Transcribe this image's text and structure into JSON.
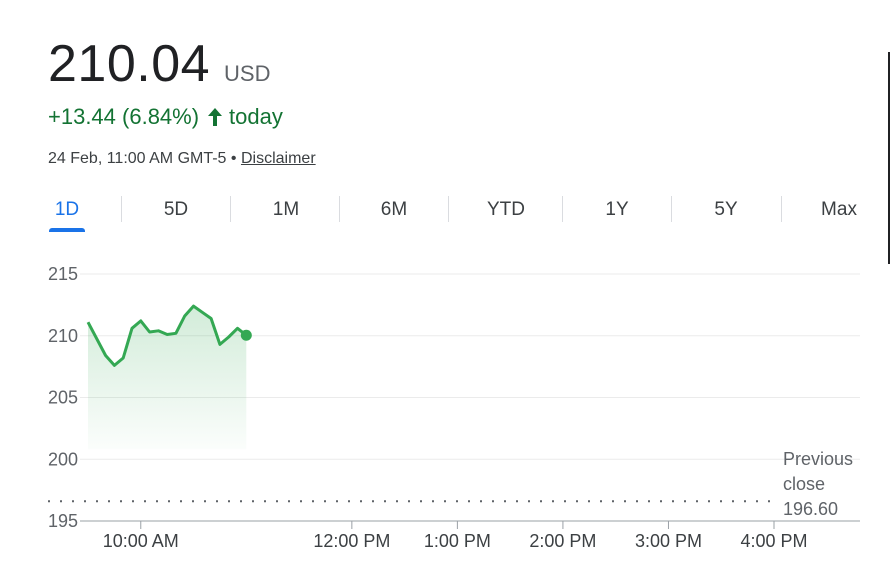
{
  "quote": {
    "price": "210.04",
    "currency": "USD",
    "change": "+13.44 (6.84%)",
    "period": "today",
    "timestamp": "24 Feb, 11:00 AM GMT-5",
    "separator": "•",
    "disclaimer": "Disclaimer",
    "up_color": "#137333"
  },
  "range_tabs": {
    "items": [
      "1D",
      "5D",
      "1M",
      "6M",
      "YTD",
      "1Y",
      "5Y",
      "Max"
    ],
    "active": "1D",
    "active_color": "#1a73e8"
  },
  "chart_data": {
    "type": "area",
    "y_ticks": [
      "215",
      "210",
      "205",
      "200",
      "195"
    ],
    "ylim": [
      195,
      215
    ],
    "x_ticks": [
      "10:00 AM",
      "12:00 PM",
      "1:00 PM",
      "2:00 PM",
      "3:00 PM",
      "4:00 PM"
    ],
    "x_range": [
      "9:30 AM",
      "4:00 PM"
    ],
    "series": [
      {
        "color": "#34a853",
        "points": [
          {
            "t": "9:30 AM",
            "v": 211.1
          },
          {
            "t": "9:40 AM",
            "v": 208.4
          },
          {
            "t": "9:45 AM",
            "v": 207.6
          },
          {
            "t": "9:50 AM",
            "v": 208.2
          },
          {
            "t": "9:55 AM",
            "v": 210.6
          },
          {
            "t": "10:00 AM",
            "v": 211.2
          },
          {
            "t": "10:05 AM",
            "v": 210.3
          },
          {
            "t": "10:10 AM",
            "v": 210.4
          },
          {
            "t": "10:15 AM",
            "v": 210.1
          },
          {
            "t": "10:20 AM",
            "v": 210.2
          },
          {
            "t": "10:25 AM",
            "v": 211.6
          },
          {
            "t": "10:30 AM",
            "v": 212.4
          },
          {
            "t": "10:35 AM",
            "v": 211.9
          },
          {
            "t": "10:40 AM",
            "v": 211.4
          },
          {
            "t": "10:45 AM",
            "v": 209.3
          },
          {
            "t": "10:50 AM",
            "v": 209.9
          },
          {
            "t": "10:55 AM",
            "v": 210.6
          },
          {
            "t": "11:00 AM",
            "v": 210.04
          }
        ]
      }
    ],
    "previous_close": {
      "label": [
        "Previous",
        "close",
        "196.60"
      ],
      "value": 196.6
    },
    "grid": true
  }
}
